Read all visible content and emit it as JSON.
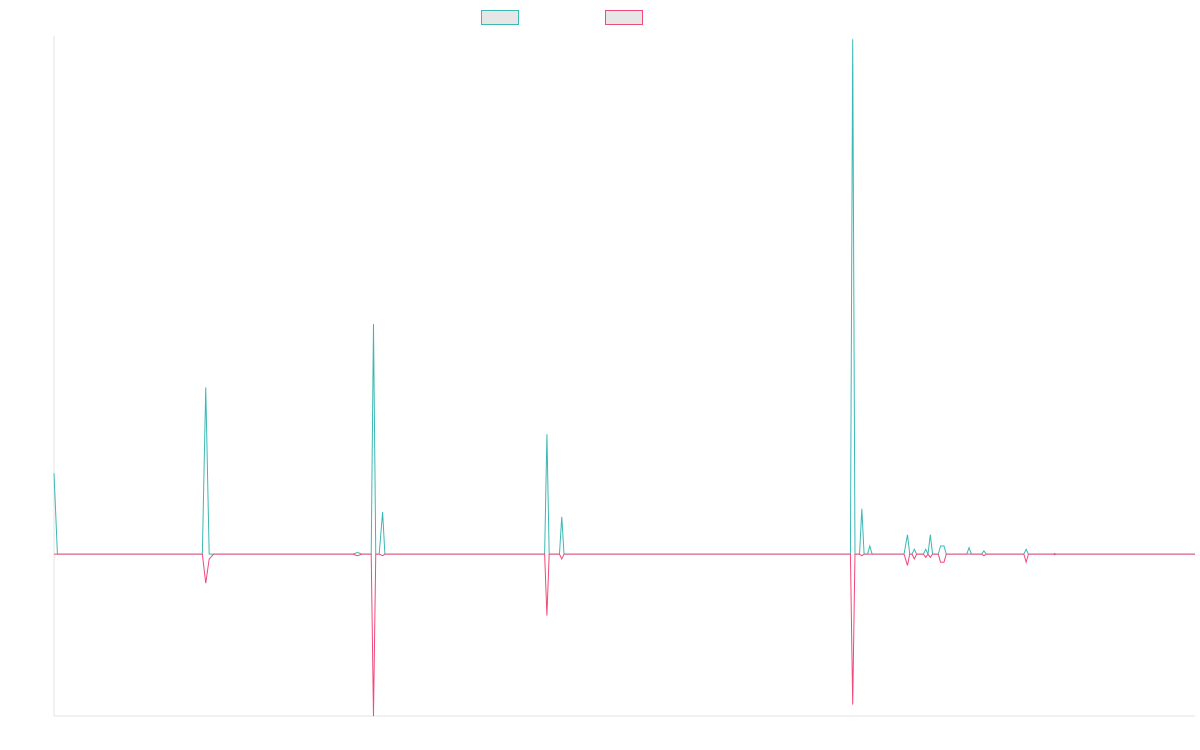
{
  "chart_data": {
    "type": "line",
    "title": "",
    "xlabel": "",
    "ylabel": "",
    "grid": false,
    "legend_position": "top-center",
    "ylim": [
      -100,
      320
    ],
    "xlim": [
      0,
      1
    ],
    "series": [
      {
        "key": "positive",
        "name": "",
        "color": "#3cb8b4",
        "fill": "#e6e6e6",
        "points": [
          [
            0.0,
            50
          ],
          [
            0.003,
            0
          ],
          [
            0.13,
            0
          ],
          [
            0.133,
            103
          ],
          [
            0.136,
            0
          ],
          [
            0.14,
            0
          ],
          [
            0.262,
            0
          ],
          [
            0.266,
            1
          ],
          [
            0.27,
            0
          ],
          [
            0.278,
            0
          ],
          [
            0.28,
            142
          ],
          [
            0.282,
            0
          ],
          [
            0.285,
            0
          ],
          [
            0.288,
            26
          ],
          [
            0.29,
            0
          ],
          [
            0.43,
            0
          ],
          [
            0.432,
            74
          ],
          [
            0.434,
            0
          ],
          [
            0.443,
            0
          ],
          [
            0.445,
            23
          ],
          [
            0.447,
            0
          ],
          [
            0.698,
            0
          ],
          [
            0.7,
            318
          ],
          [
            0.702,
            0
          ],
          [
            0.706,
            0
          ],
          [
            0.708,
            28
          ],
          [
            0.71,
            0
          ],
          [
            0.713,
            0
          ],
          [
            0.715,
            5
          ],
          [
            0.717,
            0
          ],
          [
            0.745,
            0
          ],
          [
            0.748,
            12
          ],
          [
            0.75,
            0
          ],
          [
            0.752,
            0
          ],
          [
            0.754,
            3
          ],
          [
            0.756,
            0
          ],
          [
            0.762,
            0
          ],
          [
            0.764,
            3
          ],
          [
            0.766,
            0
          ],
          [
            0.768,
            12
          ],
          [
            0.77,
            0
          ],
          [
            0.775,
            0
          ],
          [
            0.777,
            5
          ],
          [
            0.78,
            5
          ],
          [
            0.782,
            0
          ],
          [
            0.8,
            0
          ],
          [
            0.802,
            4
          ],
          [
            0.804,
            0
          ],
          [
            0.813,
            0
          ],
          [
            0.815,
            2
          ],
          [
            0.817,
            0
          ],
          [
            0.85,
            0
          ],
          [
            0.852,
            3
          ],
          [
            0.854,
            0
          ],
          [
            0.876,
            0
          ],
          [
            0.877,
            0.4
          ],
          [
            0.878,
            0
          ],
          [
            1.0,
            0
          ]
        ]
      },
      {
        "key": "negative",
        "name": "",
        "color": "#ef4a7a",
        "fill": "#e6e6e6",
        "points": [
          [
            0.0,
            0
          ],
          [
            0.13,
            0
          ],
          [
            0.133,
            -18
          ],
          [
            0.136,
            -3
          ],
          [
            0.14,
            0
          ],
          [
            0.262,
            0
          ],
          [
            0.266,
            -1
          ],
          [
            0.27,
            0
          ],
          [
            0.278,
            0
          ],
          [
            0.28,
            -100
          ],
          [
            0.282,
            0
          ],
          [
            0.285,
            0
          ],
          [
            0.288,
            -1
          ],
          [
            0.29,
            0
          ],
          [
            0.43,
            0
          ],
          [
            0.432,
            -38
          ],
          [
            0.434,
            0
          ],
          [
            0.443,
            0
          ],
          [
            0.445,
            -3
          ],
          [
            0.447,
            0
          ],
          [
            0.698,
            0
          ],
          [
            0.7,
            -93
          ],
          [
            0.702,
            0
          ],
          [
            0.706,
            0
          ],
          [
            0.708,
            -1
          ],
          [
            0.71,
            0
          ],
          [
            0.745,
            0
          ],
          [
            0.748,
            -7
          ],
          [
            0.75,
            0
          ],
          [
            0.752,
            0
          ],
          [
            0.754,
            -3
          ],
          [
            0.756,
            0
          ],
          [
            0.762,
            0
          ],
          [
            0.764,
            -2
          ],
          [
            0.766,
            0
          ],
          [
            0.768,
            -2
          ],
          [
            0.77,
            0
          ],
          [
            0.775,
            0
          ],
          [
            0.777,
            -5
          ],
          [
            0.78,
            -5
          ],
          [
            0.782,
            0
          ],
          [
            0.813,
            0
          ],
          [
            0.815,
            -1
          ],
          [
            0.817,
            0
          ],
          [
            0.85,
            0
          ],
          [
            0.852,
            -5
          ],
          [
            0.854,
            0
          ],
          [
            0.876,
            0
          ],
          [
            0.877,
            -0.4
          ],
          [
            0.878,
            0
          ],
          [
            1.0,
            0
          ]
        ]
      }
    ]
  }
}
